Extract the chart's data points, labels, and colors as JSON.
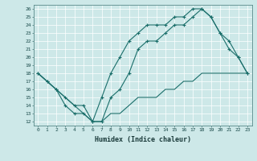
{
  "xlabel": "Humidex (Indice chaleur)",
  "background_color": "#cde8e8",
  "line_color": "#1a6e6a",
  "xlim": [
    -0.5,
    23.5
  ],
  "ylim": [
    11.5,
    26.5
  ],
  "xticks": [
    0,
    1,
    2,
    3,
    4,
    5,
    6,
    7,
    8,
    9,
    10,
    11,
    12,
    13,
    14,
    15,
    16,
    17,
    18,
    19,
    20,
    21,
    22,
    23
  ],
  "yticks": [
    12,
    13,
    14,
    15,
    16,
    17,
    18,
    19,
    20,
    21,
    22,
    23,
    24,
    25,
    26
  ],
  "curve1_x": [
    0,
    1,
    2,
    3,
    4,
    5,
    6,
    7,
    8,
    9,
    10,
    11,
    12,
    13,
    14,
    15,
    16,
    17,
    18,
    19,
    20,
    21,
    22,
    23
  ],
  "curve1_y": [
    18,
    17,
    16,
    15,
    14,
    14,
    12,
    15,
    18,
    20,
    22,
    23,
    24,
    24,
    24,
    25,
    25,
    26,
    26,
    25,
    23,
    22,
    20,
    18
  ],
  "curve2_x": [
    0,
    1,
    2,
    3,
    4,
    5,
    6,
    7,
    8,
    9,
    10,
    11,
    12,
    13,
    14,
    15,
    16,
    17,
    18,
    19,
    20,
    21,
    22,
    23
  ],
  "curve2_y": [
    18,
    17,
    16,
    15,
    14,
    13,
    12,
    12,
    13,
    13,
    14,
    15,
    15,
    15,
    16,
    16,
    17,
    17,
    18,
    18,
    18,
    18,
    18,
    18
  ],
  "curve3_x": [
    0,
    1,
    2,
    3,
    4,
    5,
    6,
    7,
    8,
    9,
    10,
    11,
    12,
    13,
    14,
    15,
    16,
    17,
    18,
    19,
    20,
    21,
    22,
    23
  ],
  "curve3_y": [
    18,
    17,
    16,
    14,
    13,
    13,
    12,
    12,
    15,
    16,
    18,
    21,
    22,
    22,
    23,
    24,
    24,
    25,
    26,
    25,
    23,
    21,
    20,
    18
  ]
}
